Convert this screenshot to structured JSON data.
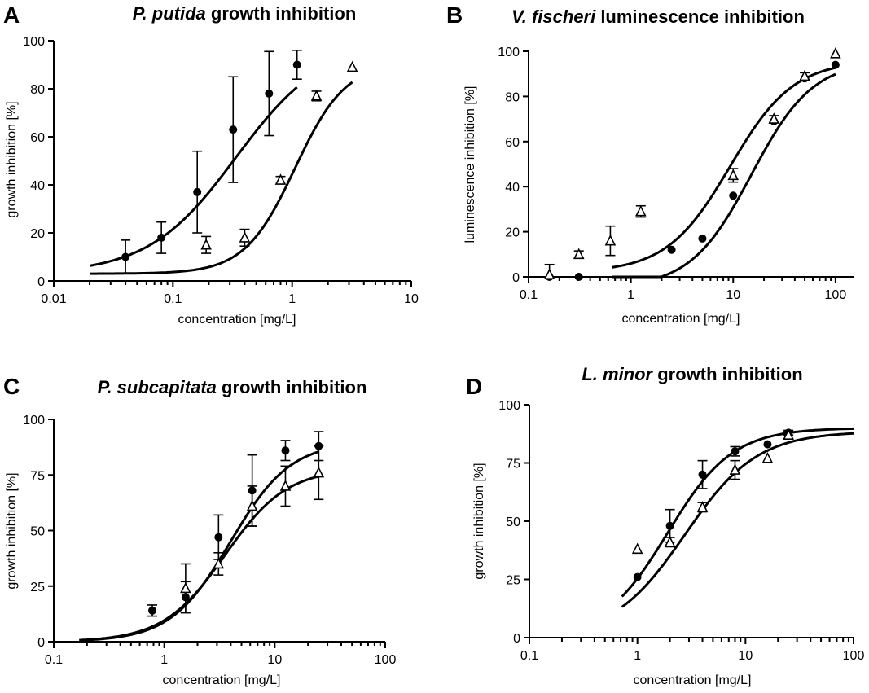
{
  "chart_data": [
    {
      "type": "scatter",
      "panel": "A",
      "title_italic": "P. putida",
      "title_rest": " growth inhibition",
      "xlabel": "concentration [mg/L]",
      "ylabel": "growth inhibition [%]",
      "xscale": "log",
      "xlim": [
        0.01,
        10
      ],
      "ylim": [
        0,
        100
      ],
      "xticks": [
        0.01,
        0.1,
        1,
        10
      ],
      "xticklabels": [
        "0.01",
        "0.1",
        "1",
        "10"
      ],
      "yticks": [
        0,
        20,
        40,
        60,
        80,
        100
      ],
      "yticklabels": [
        "0",
        "20",
        "40",
        "60",
        "80",
        "100"
      ],
      "series": [
        {
          "marker": "circle",
          "points": [
            {
              "x": 0.04,
              "y": 10,
              "err": 7
            },
            {
              "x": 0.08,
              "y": 18,
              "err": 6.5
            },
            {
              "x": 0.16,
              "y": 37,
              "err": 17
            },
            {
              "x": 0.32,
              "y": 63,
              "err": 22
            },
            {
              "x": 0.64,
              "y": 78,
              "err": 17.5
            },
            {
              "x": 1.1,
              "y": 90,
              "err": 6
            }
          ],
          "curve": {
            "bottom": 3,
            "top": 100,
            "logec50": -0.47,
            "hill": 1.18,
            "xmin": 0.02,
            "xmax": 1.1
          }
        },
        {
          "marker": "triangle",
          "points": [
            {
              "x": 0.19,
              "y": 15,
              "err": 3.5
            },
            {
              "x": 0.4,
              "y": 18,
              "err": 3.5
            },
            {
              "x": 0.8,
              "y": 42,
              "err": 1.5
            },
            {
              "x": 1.6,
              "y": 77,
              "err": 2
            },
            {
              "x": 3.2,
              "y": 89,
              "err": 0
            }
          ],
          "curve": {
            "bottom": 3,
            "top": 91,
            "logec50": 0.025,
            "hill": 2.05,
            "xmin": 0.02,
            "xmax": 3.2
          }
        }
      ]
    },
    {
      "type": "scatter",
      "panel": "B",
      "title_italic": "V. fischeri",
      "title_rest": " luminescence inhibition",
      "xlabel": "concentration [mg/L]",
      "ylabel": "luminescence inhibition [%]",
      "xscale": "log",
      "xlim": [
        0.1,
        150
      ],
      "ylim": [
        0,
        100
      ],
      "xticks": [
        0.1,
        1,
        10,
        100
      ],
      "xticklabels": [
        "0.1",
        "1",
        "10",
        "100"
      ],
      "yticks": [
        0,
        20,
        40,
        60,
        80,
        100
      ],
      "yticklabels": [
        "0",
        "20",
        "40",
        "60",
        "80",
        "100"
      ],
      "series": [
        {
          "marker": "circle",
          "points": [
            {
              "x": 0.16,
              "y": 0,
              "err": 0
            },
            {
              "x": 0.31,
              "y": 0,
              "err": 0
            },
            {
              "x": 2.5,
              "y": 12,
              "err": 0
            },
            {
              "x": 5,
              "y": 17,
              "err": 0
            },
            {
              "x": 10,
              "y": 36,
              "err": 0
            },
            {
              "x": 25,
              "y": 69,
              "err": 0
            },
            {
              "x": 50,
              "y": 88,
              "err": 0
            },
            {
              "x": 100,
              "y": 94,
              "err": 0
            }
          ],
          "curve": {
            "bottom": -5,
            "top": 96,
            "logec50": 1.18,
            "hill": 1.45,
            "xmin": 0.65,
            "xmax": 100
          }
        },
        {
          "marker": "triangle",
          "points": [
            {
              "x": 0.16,
              "y": 1,
              "err": 4.5
            },
            {
              "x": 0.31,
              "y": 10,
              "err": 1.5
            },
            {
              "x": 0.63,
              "y": 16,
              "err": 6.5
            },
            {
              "x": 1.25,
              "y": 29,
              "err": 2.5
            },
            {
              "x": 10,
              "y": 45,
              "err": 3
            },
            {
              "x": 25,
              "y": 70,
              "err": 1.5
            },
            {
              "x": 50,
              "y": 89,
              "err": 1.5
            },
            {
              "x": 100,
              "y": 99,
              "err": 0
            }
          ],
          "curve": {
            "bottom": 2,
            "top": 96,
            "logec50": 0.97,
            "hill": 1.4,
            "xmin": 0.65,
            "xmax": 100
          }
        }
      ]
    },
    {
      "type": "scatter",
      "panel": "C",
      "title_italic": "P. subcapitata",
      "title_rest": " growth inhibition",
      "xlabel": "concentration [mg/L]",
      "ylabel": "growth inhibition [%]",
      "xscale": "log",
      "xlim": [
        0.1,
        100
      ],
      "ylim": [
        0,
        100
      ],
      "xticks": [
        0.1,
        1,
        10,
        100
      ],
      "xticklabels": [
        "0.1",
        "1",
        "10",
        "100"
      ],
      "yticks": [
        0,
        25,
        50,
        75,
        100
      ],
      "yticklabels": [
        "0",
        "25",
        "50",
        "75",
        "100"
      ],
      "series": [
        {
          "marker": "circle",
          "points": [
            {
              "x": 0.78,
              "y": 14,
              "err": 2.5
            },
            {
              "x": 1.56,
              "y": 20,
              "err": 7
            },
            {
              "x": 3.1,
              "y": 47,
              "err": 10
            },
            {
              "x": 6.25,
              "y": 68,
              "err": 16
            },
            {
              "x": 12.5,
              "y": 86,
              "err": 4.5
            },
            {
              "x": 25,
              "y": 88,
              "err": 6.5
            }
          ],
          "curve": {
            "bottom": 0,
            "top": 90,
            "logec50": 0.6,
            "hill": 1.6,
            "xmin": 0.17,
            "xmax": 25
          }
        },
        {
          "marker": "triangle",
          "points": [
            {
              "x": 1.56,
              "y": 24,
              "err": 11
            },
            {
              "x": 3.1,
              "y": 35,
              "err": 5
            },
            {
              "x": 6.25,
              "y": 61,
              "err": 9
            },
            {
              "x": 12.5,
              "y": 70,
              "err": 9
            },
            {
              "x": 25,
              "y": 76,
              "err": 12
            }
          ],
          "curve": {
            "bottom": 0,
            "top": 78,
            "logec50": 0.55,
            "hill": 1.55,
            "xmin": 0.17,
            "xmax": 25
          }
        }
      ]
    },
    {
      "type": "scatter",
      "panel": "D",
      "title_italic": "L. minor",
      "title_rest": " growth inhibition",
      "xlabel": "concentration [mg/L]",
      "ylabel": "growth inhibition [%]",
      "xscale": "log",
      "xlim": [
        0.1,
        100
      ],
      "ylim": [
        0,
        100
      ],
      "xticks": [
        0.1,
        1,
        10,
        100
      ],
      "xticklabels": [
        "0.1",
        "1",
        "10",
        "100"
      ],
      "yticks": [
        0,
        25,
        50,
        75,
        100
      ],
      "yticklabels": [
        "0",
        "25",
        "50",
        "75",
        "100"
      ],
      "series": [
        {
          "marker": "circle",
          "points": [
            {
              "x": 1,
              "y": 26,
              "err": 0
            },
            {
              "x": 2,
              "y": 48,
              "err": 7
            },
            {
              "x": 4,
              "y": 70,
              "err": 6
            },
            {
              "x": 8,
              "y": 80,
              "err": 2
            },
            {
              "x": 16,
              "y": 83,
              "err": 0
            },
            {
              "x": 25,
              "y": 88,
              "err": 1
            }
          ],
          "curve": {
            "bottom": 0,
            "top": 90,
            "logec50": 0.28,
            "hill": 1.45,
            "xmin": 0.72,
            "xmax": 100
          }
        },
        {
          "marker": "triangle",
          "points": [
            {
              "x": 1,
              "y": 38,
              "err": 0
            },
            {
              "x": 2,
              "y": 41,
              "err": 2
            },
            {
              "x": 4,
              "y": 56,
              "err": 2
            },
            {
              "x": 8,
              "y": 72,
              "err": 4
            },
            {
              "x": 16,
              "y": 77,
              "err": 0
            },
            {
              "x": 25,
              "y": 87,
              "err": 1.5
            }
          ],
          "curve": {
            "bottom": 0,
            "top": 88.5,
            "logec50": 0.44,
            "hill": 1.3,
            "xmin": 0.72,
            "xmax": 100
          }
        }
      ]
    }
  ]
}
